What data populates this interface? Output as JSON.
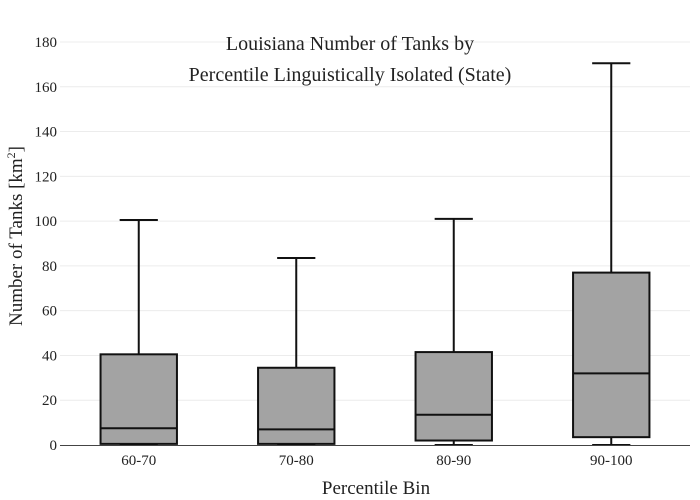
{
  "chart_data": {
    "type": "box",
    "title_lines": [
      "Louisiana Number of Tanks by",
      "Percentile Linguistically Isolated (State)"
    ],
    "xlabel": "Percentile Bin",
    "ylabel_main": "Number of Tanks  [km",
    "ylabel_sup": "2",
    "ylabel_close": "]",
    "ylim": [
      0,
      180
    ],
    "yticks": [
      0,
      20,
      40,
      60,
      80,
      100,
      120,
      140,
      160,
      180
    ],
    "ytick_labels": [
      "0",
      "20",
      "40",
      "60",
      "80",
      "100",
      "120",
      "140",
      "160",
      "180"
    ],
    "grid": true,
    "categories": [
      "60-70",
      "70-80",
      "80-90",
      "90-100"
    ],
    "boxes": [
      {
        "category": "60-70",
        "min": 0,
        "q1": 0.5,
        "median": 7.5,
        "q3": 40.5,
        "max": 100.5
      },
      {
        "category": "70-80",
        "min": 0,
        "q1": 0.5,
        "median": 7,
        "q3": 34.5,
        "max": 83.5
      },
      {
        "category": "80-90",
        "min": 0,
        "q1": 2,
        "median": 13.5,
        "q3": 41.5,
        "max": 101
      },
      {
        "category": "90-100",
        "min": 0,
        "q1": 3.5,
        "median": 32,
        "q3": 77,
        "max": 170.5
      }
    ],
    "box_color": "#a3a3a3",
    "line_color": "#111111"
  }
}
